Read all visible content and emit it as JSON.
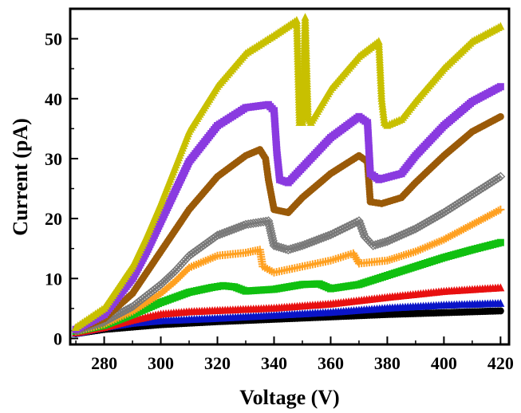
{
  "chart_data": {
    "type": "line",
    "title": "",
    "xlabel": "Voltage (V)",
    "ylabel": "Current (pA)",
    "xlim": [
      268,
      423
    ],
    "ylim": [
      -1,
      55
    ],
    "xticks": [
      280,
      300,
      320,
      340,
      360,
      380,
      400,
      420
    ],
    "yticks": [
      0,
      10,
      20,
      30,
      40,
      50
    ],
    "grid": false,
    "legend": "none",
    "series": [
      {
        "color": "#000000",
        "marker": "circle",
        "x": [
          270,
          280,
          300,
          320,
          340,
          360,
          380,
          400,
          420
        ],
        "y": [
          0.8,
          1.5,
          2.3,
          2.8,
          3.2,
          3.6,
          4.0,
          4.3,
          4.6
        ]
      },
      {
        "color": "#0a14c8",
        "marker": "triangle",
        "x": [
          270,
          280,
          290,
          300,
          320,
          340,
          360,
          380,
          400,
          420
        ],
        "y": [
          0.8,
          1.8,
          2.5,
          2.9,
          3.3,
          3.8,
          4.3,
          5.0,
          5.5,
          5.8
        ]
      },
      {
        "color": "#e81010",
        "marker": "triangle",
        "x": [
          270,
          280,
          290,
          300,
          310,
          320,
          340,
          360,
          380,
          400,
          420
        ],
        "y": [
          0.9,
          1.8,
          3.0,
          4.0,
          4.4,
          4.6,
          5.0,
          5.7,
          6.8,
          7.8,
          8.4
        ]
      },
      {
        "color": "#10c010",
        "marker": "square",
        "x": [
          270,
          280,
          290,
          300,
          310,
          318,
          322,
          326,
          330,
          340,
          350,
          356,
          360,
          370,
          380,
          390,
          400,
          410,
          420
        ],
        "y": [
          1.2,
          2.2,
          4.0,
          6.0,
          7.7,
          8.5,
          8.8,
          8.6,
          7.9,
          8.2,
          9.0,
          9.1,
          8.3,
          9.0,
          10.5,
          12.0,
          13.5,
          14.8,
          16.0
        ]
      },
      {
        "color": "#ffa020",
        "marker": "plus",
        "x": [
          270,
          280,
          290,
          300,
          305,
          310,
          320,
          330,
          335,
          336,
          340,
          350,
          360,
          368,
          370,
          380,
          390,
          400,
          410,
          420
        ],
        "y": [
          1.2,
          2.4,
          4.5,
          7.5,
          9.5,
          11.8,
          13.8,
          14.3,
          14.8,
          12.0,
          11.0,
          12.0,
          13.0,
          14.2,
          12.5,
          13.0,
          14.5,
          16.5,
          19.0,
          21.5
        ]
      },
      {
        "color": "#787878",
        "marker": "diamond",
        "x": [
          270,
          280,
          290,
          300,
          305,
          310,
          320,
          330,
          338,
          340,
          345,
          350,
          360,
          370,
          372,
          375,
          380,
          390,
          400,
          410,
          420
        ],
        "y": [
          1.3,
          2.8,
          5.3,
          9.0,
          11.2,
          13.8,
          17.2,
          19.0,
          19.6,
          15.5,
          14.8,
          15.5,
          17.3,
          19.6,
          17.0,
          15.5,
          16.2,
          18.3,
          21.0,
          24.0,
          27.0
        ]
      },
      {
        "color": "#9a5a08",
        "marker": "circle",
        "x": [
          270,
          280,
          290,
          295,
          300,
          305,
          310,
          320,
          330,
          335,
          337,
          338,
          340,
          345,
          350,
          360,
          370,
          373,
          374,
          378,
          385,
          390,
          400,
          410,
          420
        ],
        "y": [
          1.4,
          3.3,
          7.5,
          11.0,
          14.5,
          18.0,
          21.5,
          27.0,
          30.5,
          31.5,
          30.0,
          26.5,
          21.5,
          21.0,
          23.5,
          27.5,
          30.5,
          29.5,
          22.8,
          22.5,
          23.5,
          26.0,
          30.5,
          34.5,
          37.0
        ]
      },
      {
        "color": "#8a3ae0",
        "marker": "square",
        "x": [
          270,
          280,
          290,
          295,
          300,
          305,
          310,
          320,
          330,
          338,
          340,
          341,
          342,
          345,
          350,
          360,
          370,
          373,
          374,
          377,
          385,
          390,
          400,
          410,
          420
        ],
        "y": [
          1.5,
          4.0,
          10.0,
          14.5,
          19.5,
          24.5,
          29.5,
          35.5,
          38.5,
          39.0,
          38.0,
          31.0,
          26.5,
          26.0,
          28.5,
          33.5,
          37.0,
          36.0,
          27.5,
          26.5,
          27.5,
          30.5,
          35.5,
          39.5,
          42.0
        ]
      },
      {
        "color": "#c8c000",
        "marker": "triangle",
        "x": [
          270,
          280,
          290,
          295,
          300,
          305,
          310,
          320,
          330,
          340,
          348,
          349,
          350,
          351,
          352,
          353,
          360,
          370,
          377,
          378,
          379,
          380,
          385,
          390,
          400,
          410,
          420
        ],
        "y": [
          1.8,
          5.0,
          12.0,
          17.0,
          22.5,
          28.5,
          34.5,
          42.0,
          47.5,
          50.5,
          53.0,
          36.0,
          36.0,
          53.5,
          37.0,
          36.0,
          41.5,
          47.0,
          49.5,
          40.0,
          36.0,
          35.5,
          36.5,
          39.5,
          45.0,
          49.5,
          52.0
        ]
      }
    ]
  }
}
